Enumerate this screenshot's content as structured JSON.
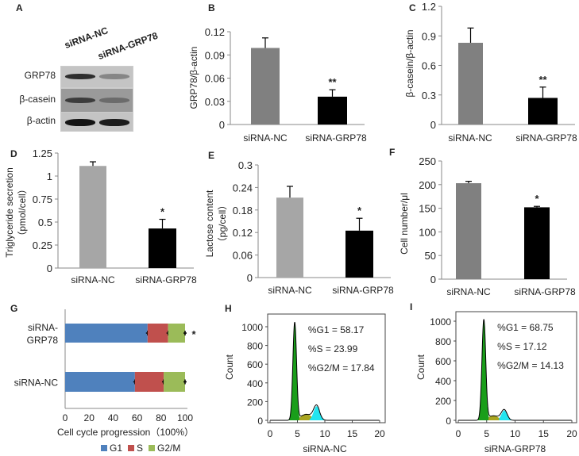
{
  "panel_letters": {
    "A": "A",
    "B": "B",
    "C": "C",
    "D": "D",
    "E": "E",
    "F": "F",
    "G": "G",
    "H": "H",
    "I": "I"
  },
  "western_blot": {
    "lanes": [
      "siRNA-NC",
      "siRNA-GRP78"
    ],
    "rows": [
      {
        "label": "GRP78",
        "intensity": [
          0.85,
          0.35
        ]
      },
      {
        "label": "β-casein",
        "intensity": [
          0.7,
          0.35
        ]
      },
      {
        "label": "β-actin",
        "intensity": [
          1.0,
          0.95
        ]
      }
    ]
  },
  "colors": {
    "nc_dark": "#808080",
    "nc_light": "#a6a6a6",
    "grp78": "#000000",
    "G1": "#4f81bd",
    "S": "#c0504d",
    "G2M": "#9bbb59",
    "hist_g1": "#1a9e1a",
    "hist_s": "#a9a520",
    "hist_g2m": "#22e5f0"
  },
  "chart_data": [
    {
      "id": "B",
      "type": "bar",
      "title": "",
      "categories": [
        "siRNA-NC",
        "siRNA-GRP78"
      ],
      "values": [
        0.099,
        0.036
      ],
      "errors": [
        0.013,
        0.009
      ],
      "significance": [
        "",
        "**"
      ],
      "ylabel": "GRP78/β-actin",
      "ylabel2": "",
      "ylim": [
        0,
        0.12
      ],
      "yticks": [
        "0",
        "0.03",
        "0.06",
        "0.09",
        "0.12"
      ]
    },
    {
      "id": "C",
      "type": "bar",
      "title": "",
      "categories": [
        "siRNA-NC",
        "siRNA-GRP78"
      ],
      "values": [
        0.83,
        0.27
      ],
      "errors": [
        0.15,
        0.11
      ],
      "significance": [
        "",
        "**"
      ],
      "ylabel": "β-casein/β-actin",
      "ylabel2": "",
      "ylim": [
        0,
        1.2
      ],
      "yticks": [
        "0",
        "0.3",
        "0.6",
        "0.9",
        "1.2"
      ]
    },
    {
      "id": "D",
      "type": "bar",
      "title": "",
      "categories": [
        "siRNA-NC",
        "siRNA-GRP78"
      ],
      "values": [
        1.11,
        0.43
      ],
      "errors": [
        0.045,
        0.1
      ],
      "significance": [
        "",
        "*"
      ],
      "ylabel": "Triglyceride secretion",
      "ylabel2": "（pmol/cell）",
      "ylim": [
        0,
        1.25
      ],
      "yticks": [
        "0",
        "0.25",
        "0.5",
        "0.75",
        "1",
        "1.25"
      ]
    },
    {
      "id": "E",
      "type": "bar",
      "title": "",
      "categories": [
        "siRNA-NC",
        "siRNA-GRP78"
      ],
      "values": [
        0.213,
        0.125
      ],
      "errors": [
        0.03,
        0.033
      ],
      "significance": [
        "",
        "*"
      ],
      "ylabel": "Lactose content",
      "ylabel2": "（pg/cell）",
      "ylim": [
        0,
        0.3
      ],
      "yticks": [
        "0",
        "0.06",
        "0.12",
        "0.18",
        "0.24",
        "0.3"
      ]
    },
    {
      "id": "F",
      "type": "bar",
      "title": "",
      "categories": [
        "siRNA-NC",
        "siRNA-GRP78"
      ],
      "values": [
        203,
        152
      ],
      "errors": [
        4,
        2
      ],
      "significance": [
        "",
        "*"
      ],
      "ylabel": "Cell number/μl",
      "ylabel2": "",
      "ylim": [
        0,
        250
      ],
      "yticks": [
        "0",
        "50",
        "100",
        "150",
        "200",
        "250"
      ]
    },
    {
      "id": "G",
      "type": "bar",
      "orientation": "horizontal",
      "stacked": true,
      "categories": [
        "siRNA-GRP78",
        "siRNA-NC"
      ],
      "category_lines": [
        [
          "siRNA-",
          "GRP78"
        ],
        [
          "siRNA-NC"
        ]
      ],
      "series": [
        {
          "name": "G1",
          "values": [
            68.75,
            58.17
          ]
        },
        {
          "name": "S",
          "values": [
            17.12,
            23.99
          ]
        },
        {
          "name": "G2/M",
          "values": [
            14.13,
            17.84
          ]
        }
      ],
      "significance": [
        "*",
        ""
      ],
      "xlabel": "Cell cycle progression（100%）",
      "xlim": [
        0,
        100
      ],
      "xticks": [
        "0",
        "20",
        "40",
        "60",
        "80",
        "100"
      ],
      "legend": "bottom"
    },
    {
      "id": "H",
      "type": "area",
      "title": "",
      "xlabel": "siRNA-NC",
      "ylabel": "Count",
      "xlim": [
        0,
        20
      ],
      "ylim": [
        0,
        1150
      ],
      "xticks": [
        "0",
        "5",
        "10",
        "15",
        "20"
      ],
      "yticks": [
        "0",
        "200",
        "400",
        "600",
        "800",
        "1000"
      ],
      "annotations": [
        "%G1 = 58.17",
        "%S = 23.99",
        "%G2/M = 17.84"
      ],
      "peaks": {
        "G1": {
          "mean": 4.5,
          "sd": 0.33,
          "height": 1050
        },
        "S": {
          "mean": 6.6,
          "sd": 0.9,
          "height": 70
        },
        "G2M": {
          "mean": 8.5,
          "sd": 0.55,
          "height": 150
        }
      }
    },
    {
      "id": "I",
      "type": "area",
      "title": "",
      "xlabel": "siRNA-GRP78",
      "ylabel": "Count",
      "xlim": [
        0,
        20
      ],
      "ylim": [
        0,
        1150
      ],
      "xticks": [
        "0",
        "5",
        "10",
        "15",
        "20"
      ],
      "yticks": [
        "0",
        "200",
        "400",
        "600",
        "800",
        "1000"
      ],
      "annotations": [
        "%G1 = 68.75",
        "%S = 17.12",
        "%G2/M = 14.13"
      ],
      "peaks": {
        "G1": {
          "mean": 4.5,
          "sd": 0.33,
          "height": 1020
        },
        "S": {
          "mean": 6.2,
          "sd": 0.8,
          "height": 50
        },
        "G2M": {
          "mean": 8.1,
          "sd": 0.5,
          "height": 100
        }
      }
    }
  ]
}
